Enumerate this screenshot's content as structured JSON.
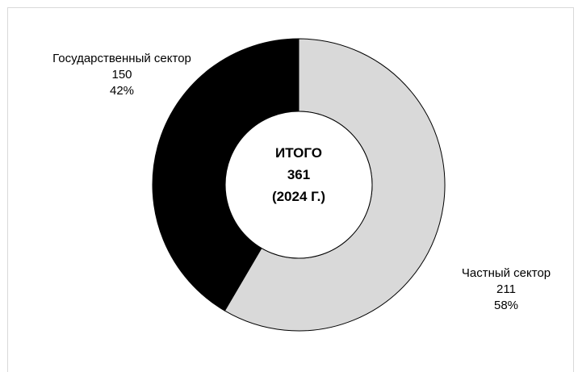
{
  "chart_data": {
    "type": "pie",
    "variant": "donut",
    "slices": [
      {
        "label": "Частный сектор",
        "value": 211,
        "percent": "58%",
        "color": "#d9d9d9"
      },
      {
        "label": "Государственный сектор",
        "value": 150,
        "percent": "42%",
        "color": "#000000"
      }
    ],
    "center_label": {
      "line1": "ИТОГО",
      "line2": "361",
      "line3": "(2024 Г.)"
    },
    "legend": "none"
  }
}
